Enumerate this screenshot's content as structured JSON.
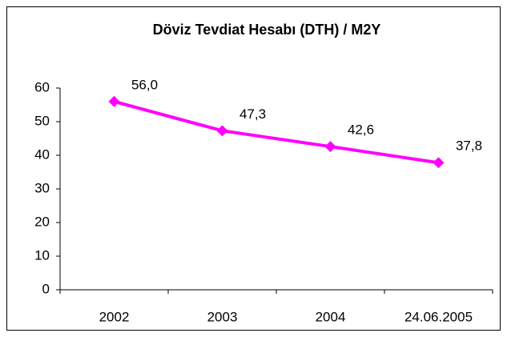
{
  "chart_data": {
    "type": "line",
    "title": "Döviz Tevdiat Hesabı (DTH) / M2Y",
    "categories": [
      "2002",
      "2003",
      "2004",
      "24.06.2005"
    ],
    "values": [
      56.0,
      47.3,
      42.6,
      37.8
    ],
    "value_labels": [
      "56,0",
      "47,3",
      "42,6",
      "37,8"
    ],
    "color": "#ff00ff",
    "ylim": [
      0,
      60
    ],
    "yticks": [
      0,
      10,
      20,
      30,
      40,
      50,
      60
    ],
    "grid": false
  }
}
